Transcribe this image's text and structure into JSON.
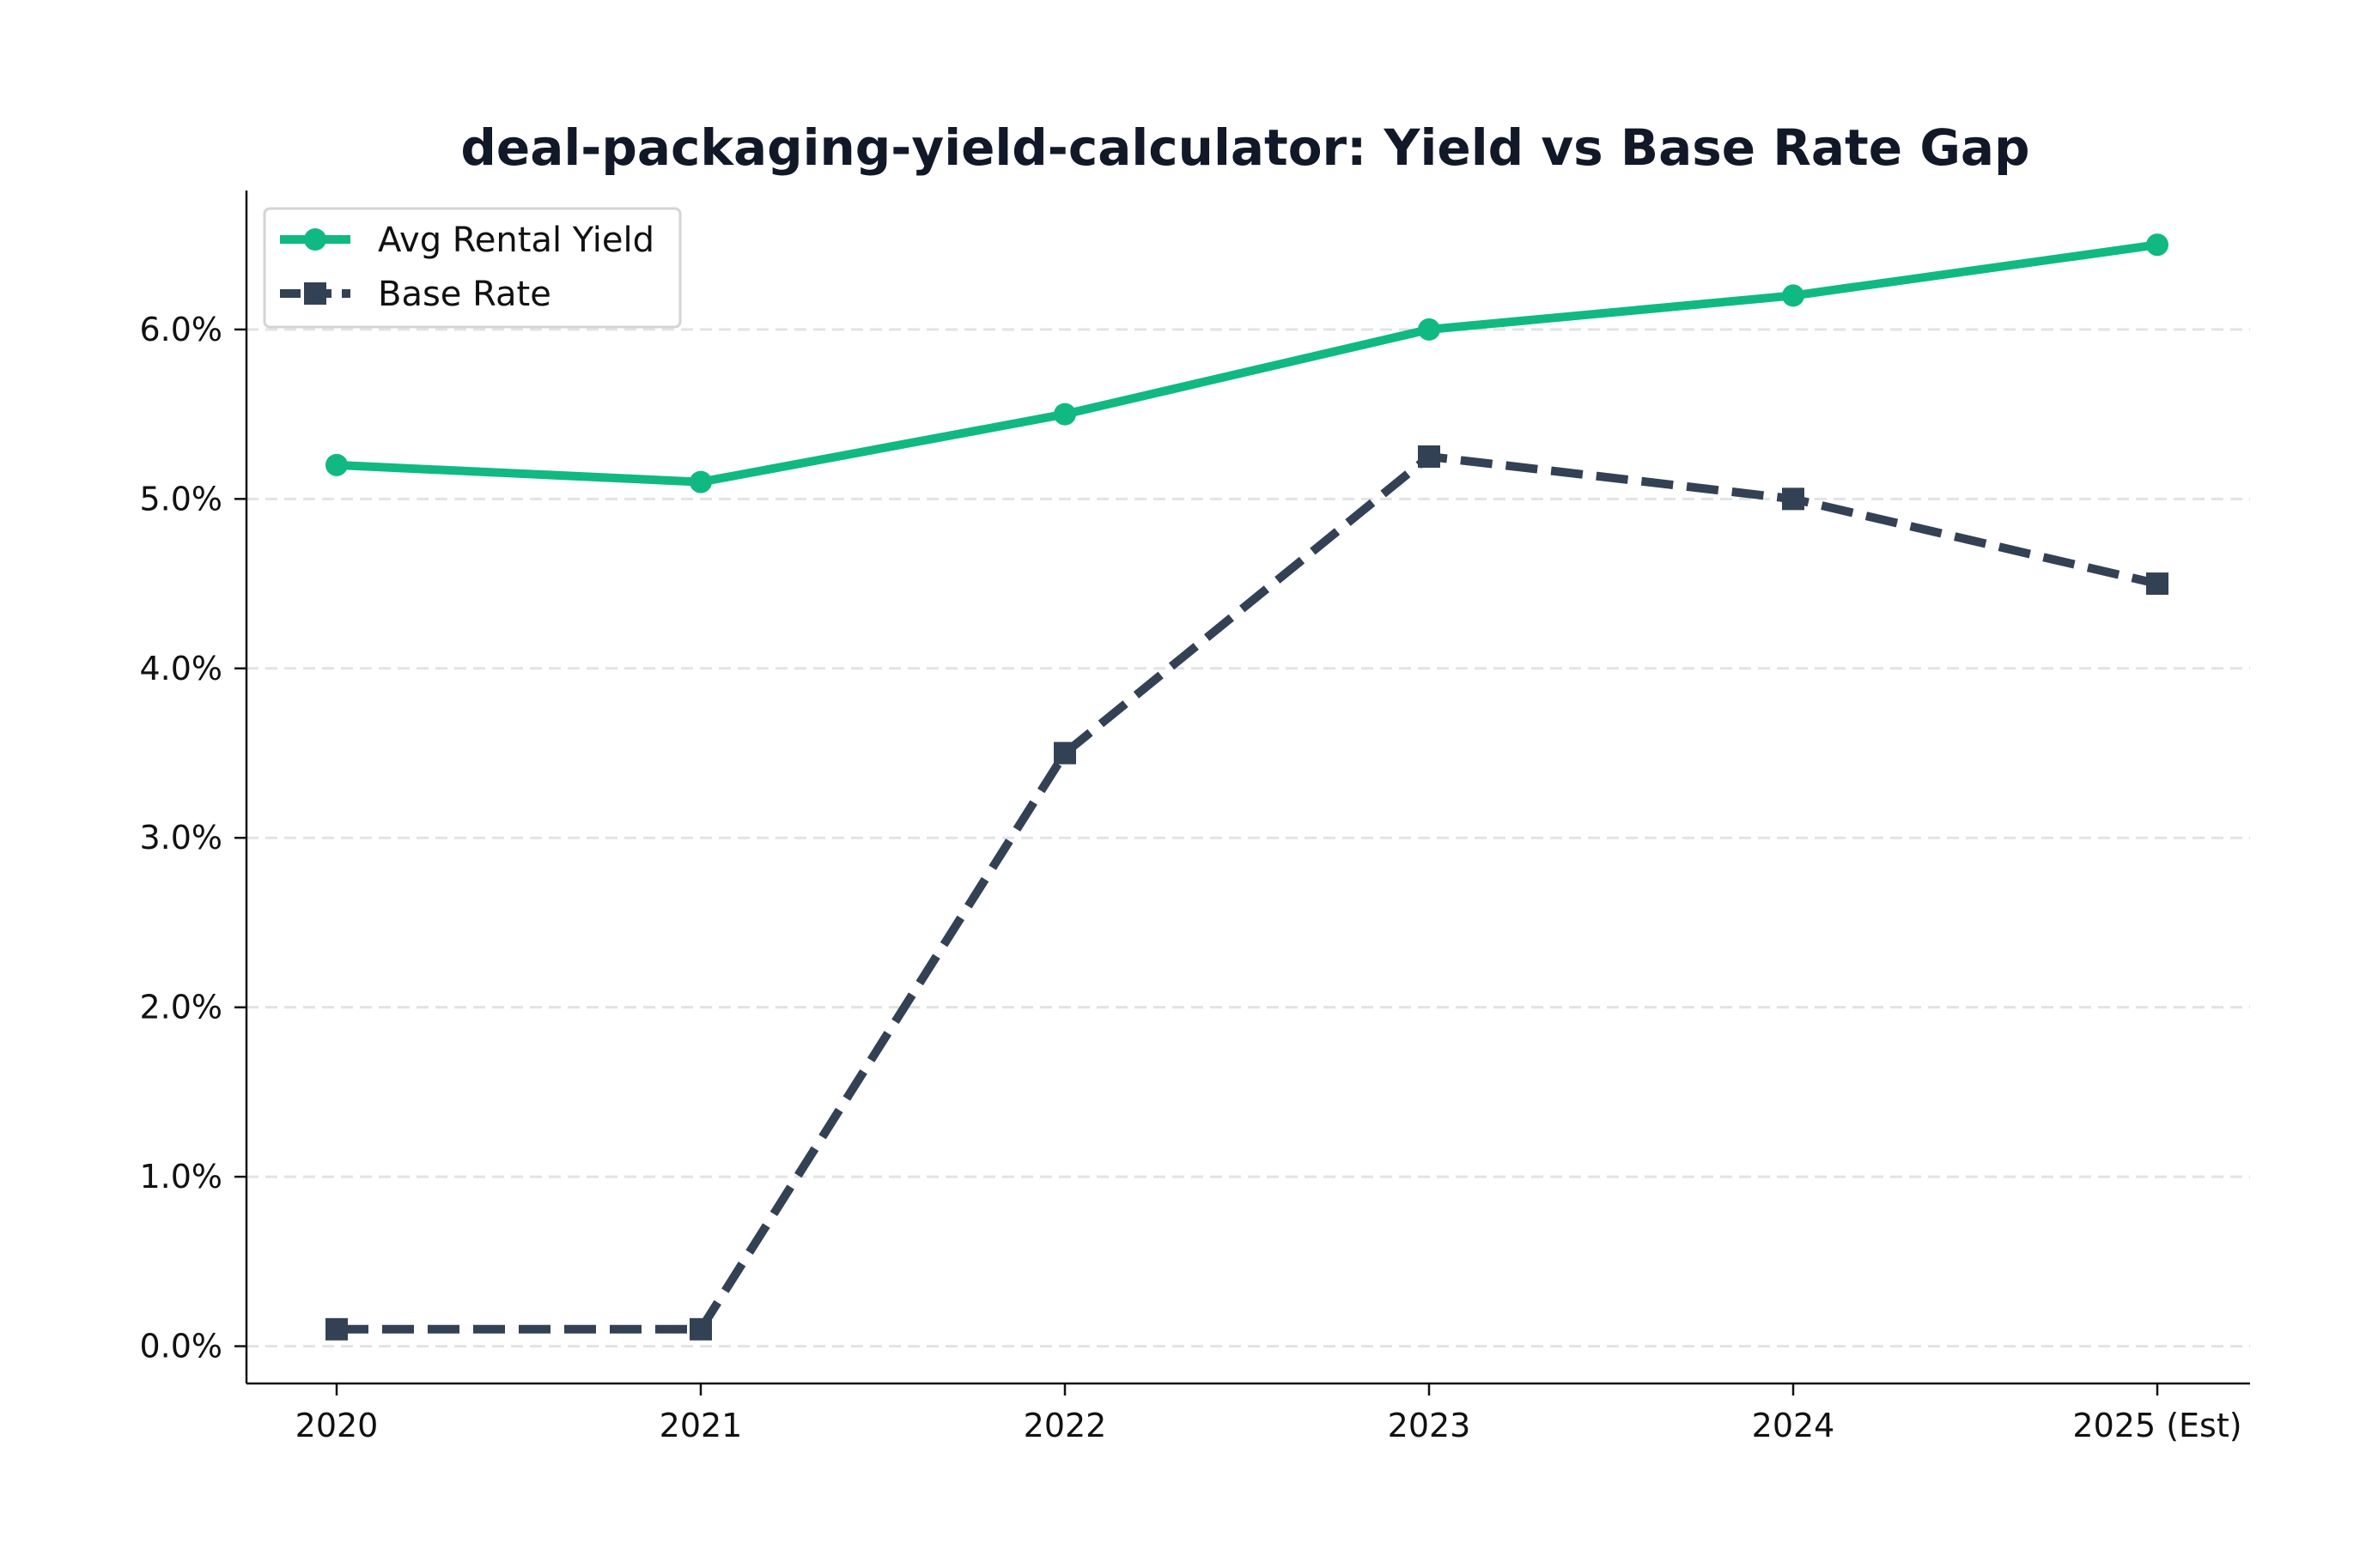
{
  "chart_data": {
    "type": "line",
    "title": "deal-packaging-yield-calculator: Yield vs Base Rate Gap",
    "xlabel": "",
    "ylabel": "",
    "categories": [
      "2020",
      "2021",
      "2022",
      "2023",
      "2024",
      "2025 (Est)"
    ],
    "series": [
      {
        "name": "Avg Rental Yield",
        "values": [
          5.2,
          5.1,
          5.5,
          6.0,
          6.2,
          6.5
        ],
        "color": "#10b981",
        "style": "solid",
        "marker": "circle"
      },
      {
        "name": "Base Rate",
        "values": [
          0.1,
          0.1,
          3.5,
          5.25,
          5.0,
          4.5
        ],
        "color": "#334155",
        "style": "dashed",
        "marker": "square"
      }
    ],
    "yticks": [
      0,
      1,
      2,
      3,
      4,
      5,
      6
    ],
    "ytick_labels": [
      "0.0%",
      "1.0%",
      "2.0%",
      "3.0%",
      "4.0%",
      "5.0%",
      "6.0%"
    ],
    "ylim": [
      -0.22,
      6.82
    ],
    "grid": "y-dashed",
    "legend_position": "top-left"
  }
}
